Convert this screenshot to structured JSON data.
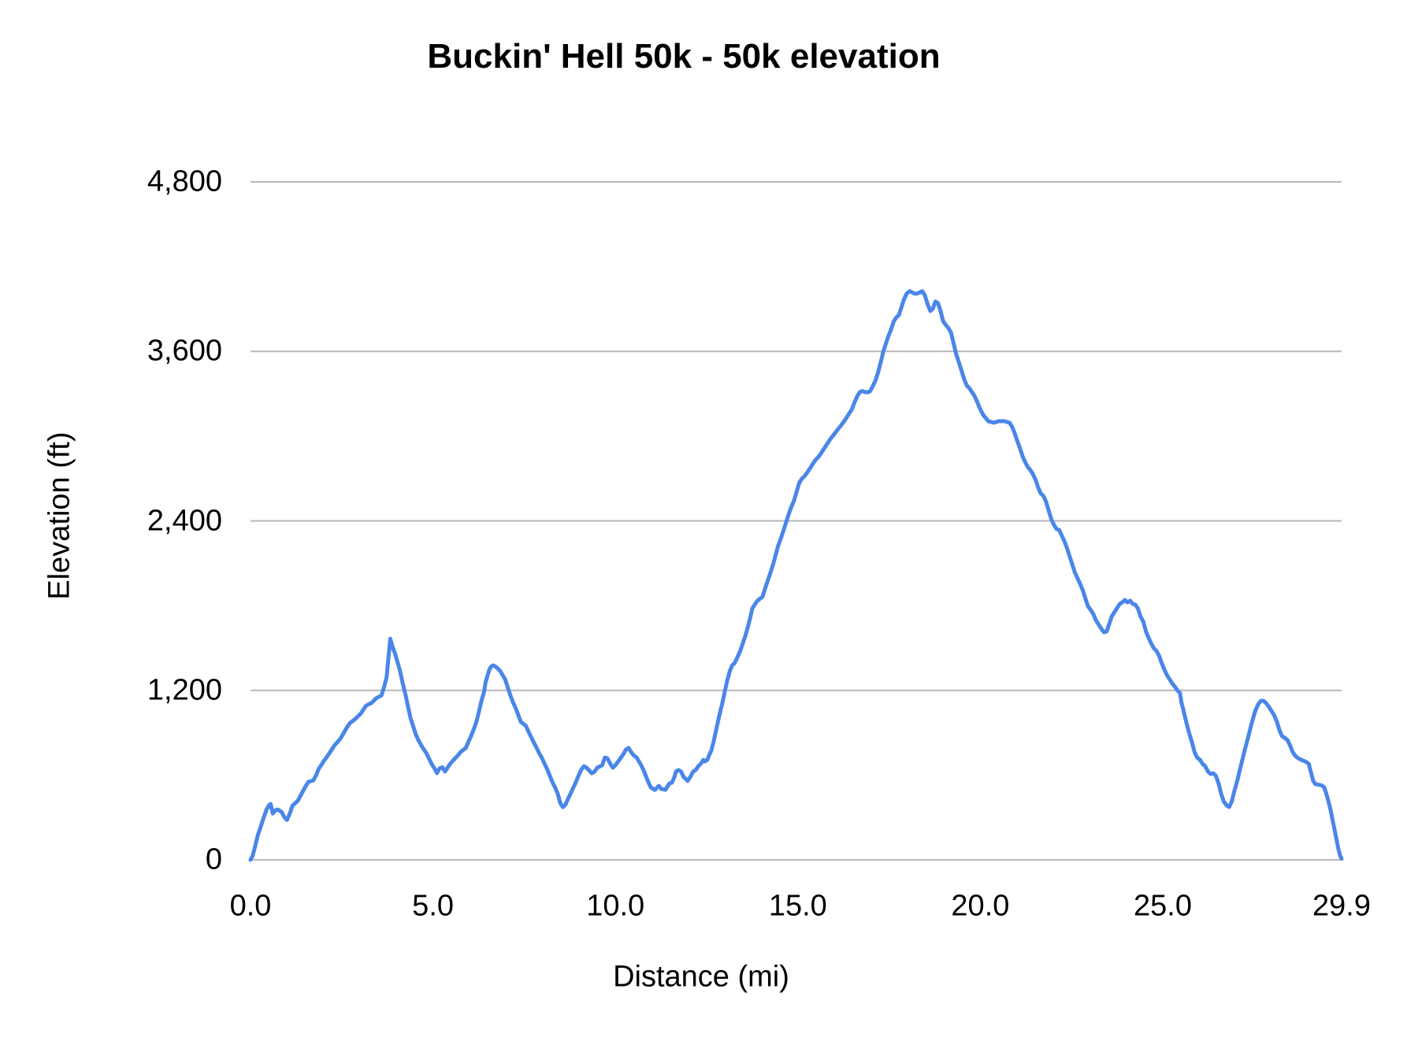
{
  "title": "Buckin' Hell 50k - 50k elevation",
  "axes": {
    "y_label": "Elevation (ft)",
    "x_label": "Distance (mi)"
  },
  "colors": {
    "line": "#4a86e8",
    "grid": "#b7b7b7",
    "text": "#000000",
    "background": "#ffffff"
  },
  "chart_data": {
    "type": "line",
    "title": "Buckin' Hell 50k - 50k elevation",
    "xlabel": "Distance (mi)",
    "ylabel": "Elevation (ft)",
    "xlim": [
      0,
      29.9
    ],
    "ylim": [
      0,
      4800
    ],
    "x_tick_values": [
      0,
      5,
      10,
      15,
      20,
      25,
      29.9
    ],
    "x_tick_labels": [
      "0.0",
      "5.0",
      "10.0",
      "15.0",
      "20.0",
      "25.0",
      "29.9"
    ],
    "y_tick_values": [
      0,
      1200,
      2400,
      3600,
      4800
    ],
    "y_tick_labels": [
      "0",
      "1,200",
      "2,400",
      "3,600",
      "4,800"
    ],
    "grid": "horizontal",
    "legend": "none",
    "line_color": "#4a86e8",
    "series": [
      {
        "name": "50k elevation",
        "x": [
          0.0,
          0.06,
          0.12,
          0.2,
          0.28,
          0.36,
          0.44,
          0.5,
          0.55,
          0.61,
          0.68,
          0.74,
          0.8,
          0.86,
          0.93,
          1.0,
          1.08,
          1.15,
          1.22,
          1.3,
          1.37,
          1.44,
          1.51,
          1.58,
          1.65,
          1.72,
          1.8,
          1.87,
          1.94,
          2.01,
          2.09,
          2.16,
          2.23,
          2.3,
          2.37,
          2.44,
          2.52,
          2.59,
          2.66,
          2.73,
          2.81,
          2.88,
          2.95,
          3.02,
          3.09,
          3.16,
          3.24,
          3.31,
          3.38,
          3.45,
          3.52,
          3.59,
          3.66,
          3.73,
          3.78,
          3.83,
          3.89,
          3.96,
          4.03,
          4.1,
          4.17,
          4.25,
          4.32,
          4.39,
          4.46,
          4.53,
          4.6,
          4.68,
          4.75,
          4.82,
          4.89,
          4.96,
          5.04,
          5.11,
          5.18,
          5.26,
          5.33,
          5.4,
          5.47,
          5.54,
          5.61,
          5.69,
          5.76,
          5.83,
          5.9,
          5.97,
          6.04,
          6.12,
          6.19,
          6.26,
          6.33,
          6.4,
          6.44,
          6.5,
          6.55,
          6.6,
          6.65,
          6.73,
          6.79,
          6.84,
          6.91,
          6.98,
          7.05,
          7.12,
          7.19,
          7.27,
          7.34,
          7.41,
          7.48,
          7.55,
          7.62,
          7.7,
          7.77,
          7.84,
          7.91,
          7.99,
          8.06,
          8.13,
          8.2,
          8.27,
          8.35,
          8.42,
          8.49,
          8.56,
          8.63,
          8.7,
          8.78,
          8.85,
          8.92,
          8.99,
          9.07,
          9.14,
          9.21,
          9.28,
          9.35,
          9.43,
          9.5,
          9.57,
          9.64,
          9.71,
          9.78,
          9.86,
          9.93,
          10.0,
          10.07,
          10.14,
          10.22,
          10.29,
          10.36,
          10.43,
          10.5,
          10.58,
          10.65,
          10.72,
          10.8,
          10.87,
          10.97,
          11.08,
          11.19,
          11.26,
          11.37,
          11.48,
          11.55,
          11.62,
          11.66,
          11.73,
          11.8,
          11.87,
          11.94,
          11.98,
          12.05,
          12.13,
          12.2,
          12.27,
          12.34,
          12.41,
          12.45,
          12.52,
          12.56,
          12.63,
          12.7,
          12.77,
          12.84,
          12.92,
          12.99,
          13.06,
          13.13,
          13.2,
          13.27,
          13.34,
          13.42,
          13.49,
          13.56,
          13.63,
          13.7,
          13.75,
          13.82,
          13.89,
          13.96,
          14.03,
          14.1,
          14.18,
          14.25,
          14.32,
          14.39,
          14.46,
          14.54,
          14.61,
          14.68,
          14.75,
          14.82,
          14.9,
          14.97,
          15.04,
          15.11,
          15.18,
          15.26,
          15.33,
          15.4,
          15.47,
          15.55,
          15.62,
          15.69,
          15.76,
          15.83,
          15.9,
          15.98,
          16.05,
          16.12,
          16.19,
          16.27,
          16.34,
          16.41,
          16.48,
          16.55,
          16.63,
          16.7,
          16.77,
          16.84,
          16.91,
          16.98,
          17.06,
          17.13,
          17.2,
          17.27,
          17.34,
          17.41,
          17.48,
          17.56,
          17.63,
          17.7,
          17.77,
          17.84,
          17.91,
          17.98,
          18.06,
          18.13,
          18.2,
          18.27,
          18.34,
          18.41,
          18.48,
          18.56,
          18.63,
          18.7,
          18.77,
          18.84,
          18.91,
          18.98,
          19.06,
          19.13,
          19.2,
          19.27,
          19.34,
          19.41,
          19.48,
          19.56,
          19.63,
          19.7,
          19.77,
          19.84,
          19.91,
          19.98,
          20.08,
          20.22,
          20.37,
          20.51,
          20.66,
          20.8,
          20.87,
          20.94,
          21.01,
          21.09,
          21.16,
          21.23,
          21.3,
          21.37,
          21.44,
          21.52,
          21.59,
          21.66,
          21.73,
          21.8,
          21.87,
          21.95,
          22.02,
          22.09,
          22.16,
          22.23,
          22.31,
          22.38,
          22.45,
          22.52,
          22.59,
          22.67,
          22.74,
          22.81,
          22.88,
          22.95,
          23.03,
          23.1,
          23.17,
          23.24,
          23.31,
          23.39,
          23.46,
          23.53,
          23.6,
          23.67,
          23.75,
          23.82,
          23.89,
          23.96,
          24.03,
          24.11,
          24.18,
          24.25,
          24.32,
          24.39,
          24.47,
          24.54,
          24.61,
          24.68,
          24.75,
          24.83,
          24.9,
          24.97,
          25.04,
          25.11,
          25.19,
          25.26,
          25.33,
          25.4,
          25.47,
          25.51,
          25.58,
          25.65,
          25.73,
          25.8,
          25.87,
          25.94,
          26.02,
          26.09,
          26.16,
          26.24,
          26.31,
          26.38,
          26.45,
          26.53,
          26.6,
          26.67,
          26.75,
          26.82,
          26.89,
          26.96,
          27.04,
          27.11,
          27.18,
          27.25,
          27.33,
          27.4,
          27.47,
          27.54,
          27.62,
          27.69,
          27.76,
          27.83,
          27.91,
          27.98,
          28.05,
          28.13,
          28.2,
          28.27,
          28.34,
          28.42,
          28.49,
          28.56,
          28.63,
          28.72,
          28.82,
          28.92,
          29.0,
          29.06,
          29.12,
          29.18,
          29.26,
          29.34,
          29.42,
          29.48,
          29.54,
          29.6,
          29.67,
          29.74,
          29.81,
          29.86,
          29.9
        ],
        "y": [
          0,
          30,
          90,
          175,
          235,
          300,
          356,
          385,
          396,
          328,
          350,
          357,
          348,
          337,
          300,
          282,
          330,
          384,
          400,
          420,
          455,
          488,
          520,
          550,
          558,
          562,
          600,
          645,
          672,
          700,
          728,
          755,
          782,
          810,
          830,
          850,
          882,
          915,
          945,
          970,
          985,
          1000,
          1018,
          1035,
          1062,
          1090,
          1102,
          1110,
          1128,
          1145,
          1155,
          1165,
          1222,
          1295,
          1430,
          1565,
          1510,
          1460,
          1398,
          1335,
          1250,
          1165,
          1082,
          1000,
          944,
          888,
          848,
          810,
          782,
          755,
          718,
          680,
          648,
          614,
          648,
          655,
          625,
          652,
          680,
          700,
          720,
          742,
          764,
          778,
          792,
          834,
          875,
          926,
          976,
          1050,
          1126,
          1190,
          1255,
          1310,
          1349,
          1370,
          1377,
          1366,
          1352,
          1338,
          1308,
          1277,
          1220,
          1165,
          1118,
          1071,
          1024,
          976,
          962,
          948,
          906,
          864,
          828,
          792,
          756,
          719,
          680,
          641,
          597,
          552,
          510,
          468,
          401,
          373,
          390,
          432,
          474,
          513,
          552,
          597,
          641,
          663,
          652,
          632,
          613,
          625,
          652,
          661,
          670,
          725,
          719,
          680,
          652,
          670,
          695,
          719,
          750,
          781,
          792,
          764,
          740,
          725,
          695,
          663,
          616,
          569,
          513,
          495,
          524,
          502,
          496,
          541,
          547,
          590,
          625,
          636,
          625,
          586,
          570,
          558,
          586,
          625,
          636,
          663,
          680,
          708,
          697,
          708,
          736,
          775,
          848,
          931,
          1015,
          1098,
          1182,
          1266,
          1333,
          1377,
          1394,
          1433,
          1478,
          1533,
          1585,
          1650,
          1720,
          1779,
          1808,
          1834,
          1848,
          1862,
          1920,
          1980,
          2035,
          2091,
          2158,
          2225,
          2280,
          2336,
          2392,
          2448,
          2498,
          2548,
          2610,
          2671,
          2699,
          2716,
          2744,
          2771,
          2799,
          2827,
          2850,
          2872,
          2900,
          2928,
          2956,
          2983,
          3008,
          3033,
          3056,
          3078,
          3106,
          3134,
          3162,
          3190,
          3238,
          3284,
          3312,
          3320,
          3312,
          3310,
          3318,
          3357,
          3396,
          3452,
          3524,
          3597,
          3653,
          3708,
          3759,
          3813,
          3841,
          3858,
          3914,
          3970,
          4009,
          4026,
          4018,
          4009,
          4009,
          4018,
          4026,
          3998,
          3931,
          3886,
          3903,
          3953,
          3942,
          3886,
          3813,
          3785,
          3764,
          3730,
          3653,
          3580,
          3524,
          3468,
          3402,
          3357,
          3340,
          3312,
          3284,
          3245,
          3200,
          3150,
          3106,
          3095,
          3106,
          3106,
          3095,
          3067,
          3022,
          2967,
          2911,
          2855,
          2816,
          2782,
          2760,
          2732,
          2687,
          2632,
          2593,
          2576,
          2537,
          2475,
          2409,
          2370,
          2342,
          2336,
          2297,
          2252,
          2203,
          2147,
          2091,
          2035,
          1991,
          1952,
          1907,
          1851,
          1795,
          1767,
          1739,
          1695,
          1667,
          1639,
          1611,
          1617,
          1667,
          1723,
          1751,
          1784,
          1812,
          1823,
          1840,
          1823,
          1834,
          1812,
          1806,
          1779,
          1723,
          1684,
          1617,
          1572,
          1534,
          1500,
          1478,
          1444,
          1394,
          1349,
          1310,
          1277,
          1249,
          1227,
          1199,
          1182,
          1115,
          1043,
          970,
          892,
          831,
          764,
          725,
          708,
          680,
          663,
          625,
          608,
          613,
          597,
          541,
          468,
          413,
          385,
          374,
          413,
          485,
          558,
          636,
          708,
          781,
          859,
          931,
          998,
          1059,
          1104,
          1126,
          1126,
          1110,
          1082,
          1054,
          1026,
          976,
          915,
          876,
          864,
          848,
          809,
          764,
          736,
          718,
          705,
          695,
          680,
          620,
          560,
          537,
          532,
          528,
          515,
          470,
          415,
          352,
          262,
          172,
          80,
          32,
          8
        ]
      }
    ]
  }
}
